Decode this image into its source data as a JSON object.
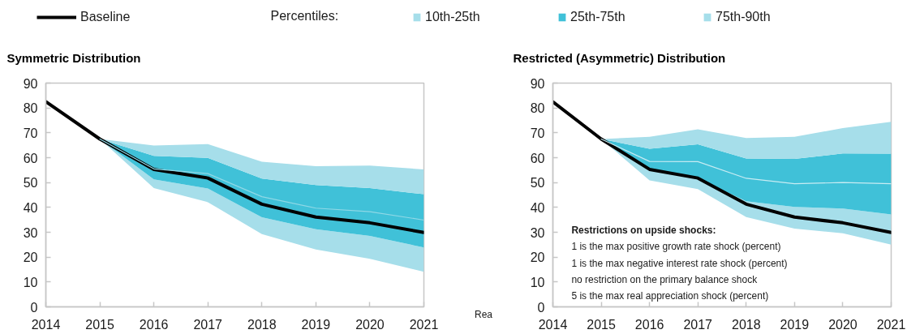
{
  "chart_data": [
    {
      "type": "area",
      "title": "Symmetric Distribution",
      "x": [
        2014,
        2015,
        2016,
        2017,
        2018,
        2019,
        2020,
        2021
      ],
      "xlim": [
        2014,
        2021
      ],
      "xticks": [
        2014,
        2015,
        2016,
        2017,
        2018,
        2019,
        2020,
        2021
      ],
      "ylim": [
        0,
        90
      ],
      "yticks": [
        0,
        10,
        20,
        30,
        40,
        50,
        60,
        70,
        80,
        90
      ],
      "legend": "top",
      "legend_title": "Percentiles:",
      "annotations": [
        "Rea"
      ],
      "series": [
        {
          "name": "Baseline",
          "type": "line",
          "color": "#000000",
          "values": [
            82.5,
            67.5,
            55.3,
            51.8,
            41.3,
            36.1,
            33.8,
            29.9
          ]
        },
        {
          "name": "10th-25th",
          "color": "#a6deea",
          "values": [
            null,
            null,
            null,
            null,
            null,
            null,
            null,
            null
          ],
          "lower": [
            null,
            67.5,
            47.8,
            42.1,
            29.3,
            23.1,
            19.3,
            14.1
          ],
          "upper": [
            null,
            67.5,
            51.3,
            47.6,
            36.0,
            31.2,
            28.5,
            23.9
          ]
        },
        {
          "name": "25th-75th",
          "color": "#40c1d8",
          "values": [
            null,
            null,
            null,
            null,
            null,
            null,
            null,
            null
          ],
          "lower": [
            null,
            67.5,
            51.3,
            47.6,
            36.0,
            31.2,
            28.5,
            23.9
          ],
          "upper": [
            null,
            67.5,
            60.7,
            59.9,
            51.6,
            49.0,
            47.8,
            45.3
          ]
        },
        {
          "name": "75th-90th",
          "color": "#a6deea",
          "values": [
            null,
            null,
            null,
            null,
            null,
            null,
            null,
            null
          ],
          "lower": [
            null,
            67.5,
            60.7,
            59.9,
            51.6,
            49.0,
            47.8,
            45.3
          ],
          "upper": [
            null,
            67.5,
            64.9,
            65.5,
            58.4,
            56.6,
            56.8,
            55.3
          ]
        },
        {
          "type": "line",
          "color": "#8fd8e6",
          "values": [
            null,
            67.5,
            55.5,
            53.6,
            44.3,
            39.7,
            38.3,
            34.9
          ]
        }
      ]
    },
    {
      "type": "area",
      "title": "Restricted (Asymmetric) Distribution",
      "x": [
        2014,
        2015,
        2016,
        2017,
        2018,
        2019,
        2020,
        2021
      ],
      "xlim": [
        2014,
        2021
      ],
      "xticks": [
        2014,
        2015,
        2016,
        2017,
        2018,
        2019,
        2020,
        2021
      ],
      "ylim": [
        0,
        90
      ],
      "yticks": [
        0,
        10,
        20,
        30,
        40,
        50,
        60,
        70,
        80,
        90
      ],
      "annotations": [
        "Restrictions on upside shocks:",
        "1 is the max positive growth rate shock (percent)",
        "1 is the max negative interest rate shock (percent)",
        "no restriction on the primary balance shock",
        "5 is the max real appreciation shock (percent)"
      ],
      "series": [
        {
          "type": "line",
          "color": "#000000",
          "values": [
            82.5,
            67.5,
            55.3,
            51.8,
            41.3,
            36.1,
            33.8,
            29.9
          ]
        },
        {
          "color": "#a6deea",
          "values": [
            null,
            null,
            null,
            null,
            null,
            null,
            null,
            null
          ],
          "lower": [
            null,
            67.5,
            50.9,
            47.4,
            36.1,
            31.5,
            29.6,
            25.0
          ],
          "upper": [
            null,
            67.5,
            55.2,
            51.7,
            42.5,
            40.2,
            39.5,
            37.2
          ]
        },
        {
          "color": "#40c1d8",
          "values": [
            null,
            null,
            null,
            null,
            null,
            null,
            null,
            null
          ],
          "lower": [
            null,
            67.5,
            55.2,
            51.7,
            42.5,
            40.2,
            39.5,
            37.2
          ],
          "upper": [
            null,
            67.5,
            63.6,
            65.4,
            59.7,
            59.5,
            61.7,
            61.6
          ]
        },
        {
          "color": "#a6deea",
          "values": [
            null,
            null,
            null,
            null,
            null,
            null,
            null,
            null
          ],
          "lower": [
            null,
            67.5,
            63.6,
            65.4,
            59.7,
            59.5,
            61.7,
            61.6
          ],
          "upper": [
            null,
            67.5,
            68.4,
            71.4,
            67.9,
            68.4,
            71.9,
            74.4
          ]
        },
        {
          "type": "line",
          "color": "#c8ecf3",
          "values": [
            null,
            67.5,
            58.5,
            58.4,
            51.7,
            49.5,
            50.0,
            49.5
          ]
        }
      ]
    }
  ]
}
